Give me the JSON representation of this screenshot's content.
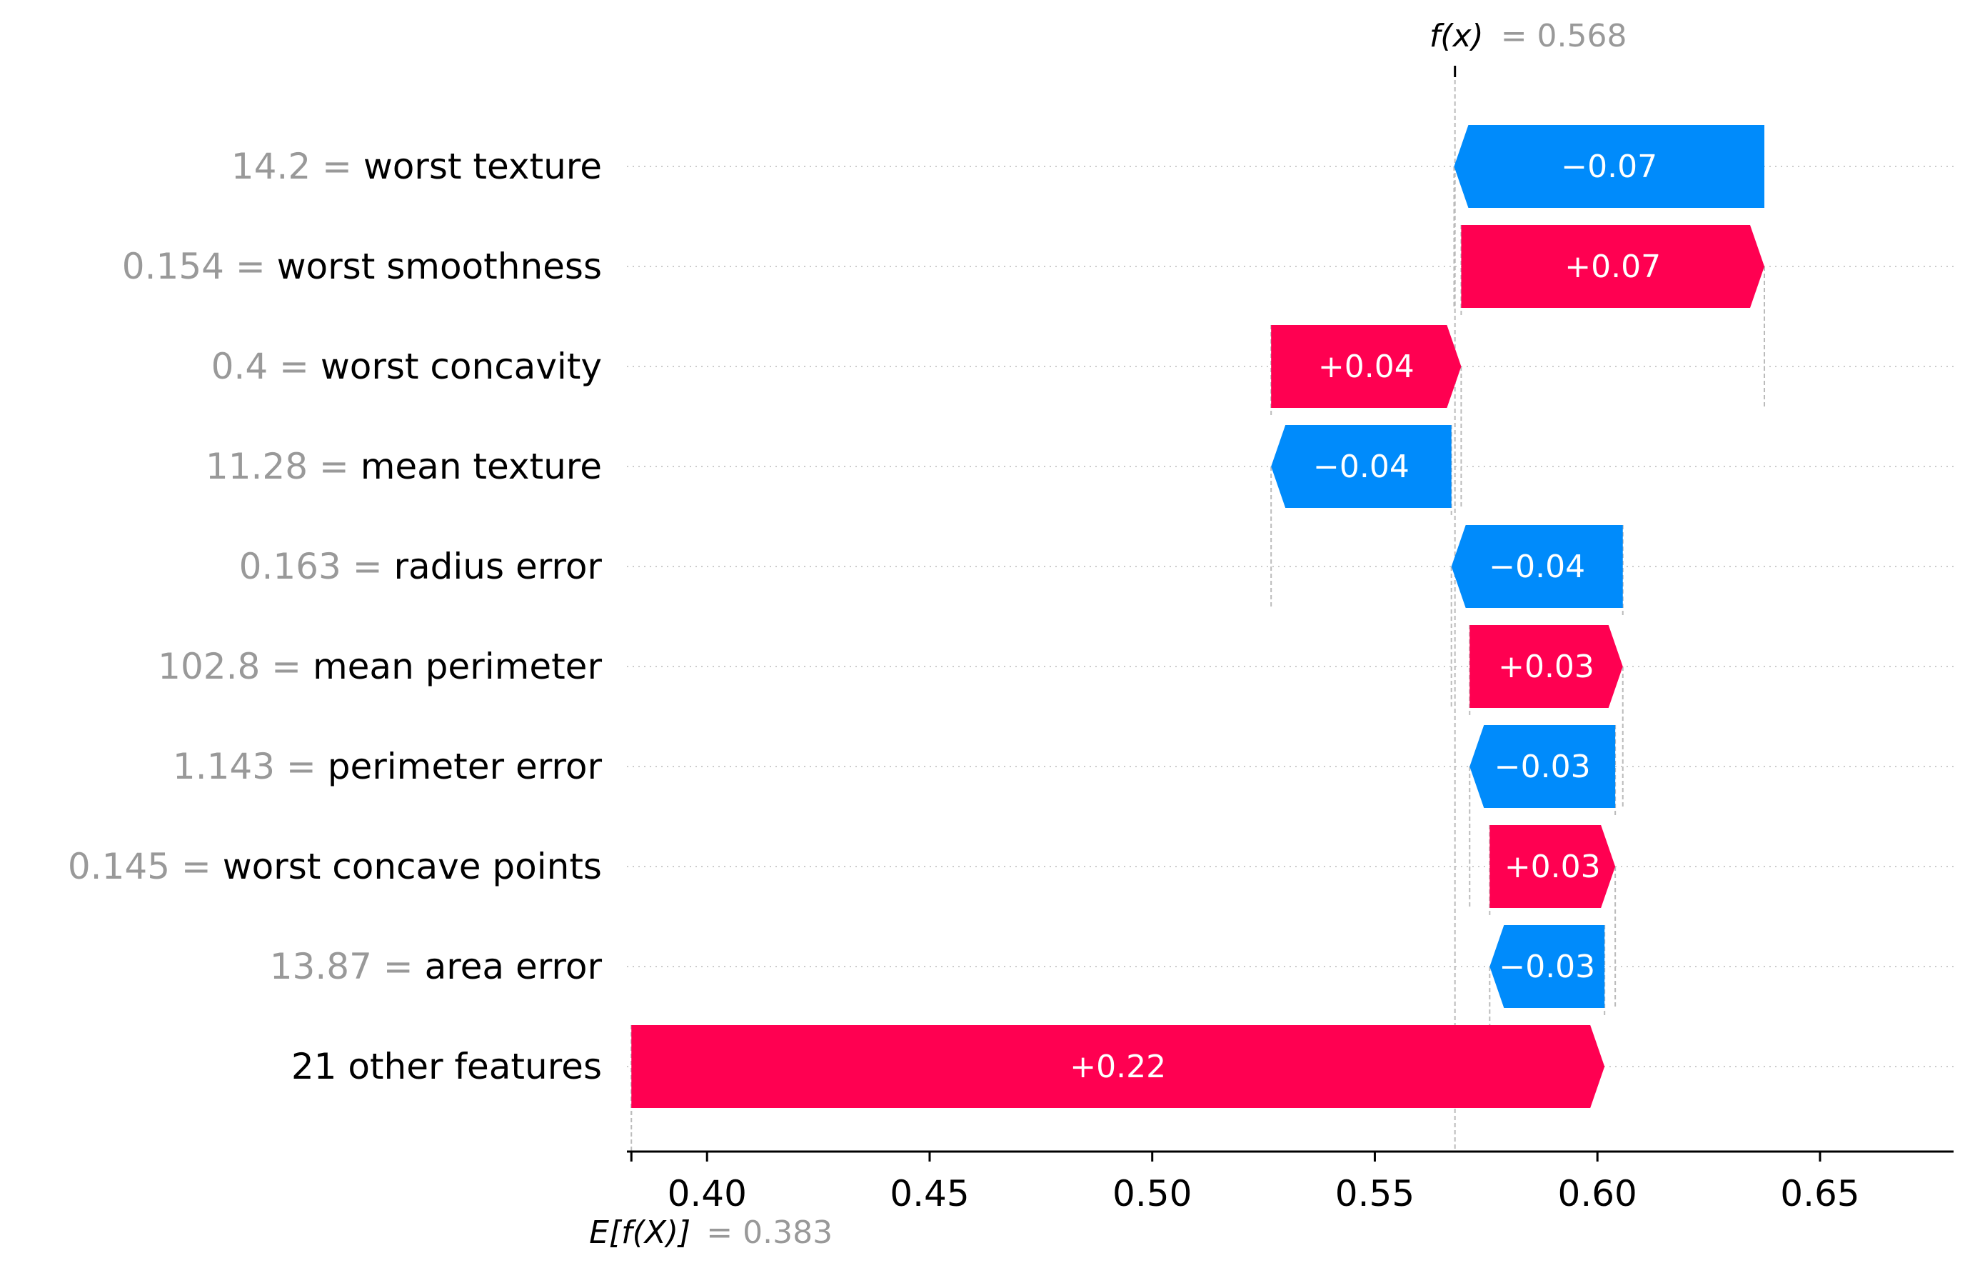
{
  "chart_data": {
    "type": "waterfall",
    "fx_label": "f(x)",
    "fx_value": "0.568",
    "ex_label": "E[f(X)]",
    "ex_value": "0.383",
    "base_value": 0.383,
    "final_value": 0.568,
    "xlim": [
      0.382,
      0.68
    ],
    "xticks": [
      {
        "value": 0.4,
        "label": "0.40"
      },
      {
        "value": 0.45,
        "label": "0.45"
      },
      {
        "value": 0.5,
        "label": "0.50"
      },
      {
        "value": 0.55,
        "label": "0.55"
      },
      {
        "value": 0.6,
        "label": "0.60"
      },
      {
        "value": 0.65,
        "label": "0.65"
      }
    ],
    "features": [
      {
        "value_text": "14.2",
        "name": "worst texture",
        "start": 0.6375,
        "end": 0.5678,
        "label": "−0.07"
      },
      {
        "value_text": "0.154",
        "name": "worst smoothness",
        "start": 0.5694,
        "end": 0.6375,
        "label": "+0.07"
      },
      {
        "value_text": "0.4",
        "name": "worst concavity",
        "start": 0.5267,
        "end": 0.5694,
        "label": "+0.04"
      },
      {
        "value_text": "11.28",
        "name": "mean texture",
        "start": 0.5672,
        "end": 0.5267,
        "label": "−0.04"
      },
      {
        "value_text": "0.163",
        "name": "radius error",
        "start": 0.6057,
        "end": 0.5672,
        "label": "−0.04"
      },
      {
        "value_text": "102.8",
        "name": "mean perimeter",
        "start": 0.5713,
        "end": 0.6057,
        "label": "+0.03"
      },
      {
        "value_text": "1.143",
        "name": "perimeter error",
        "start": 0.604,
        "end": 0.5713,
        "label": "−0.03"
      },
      {
        "value_text": "0.145",
        "name": "worst concave points",
        "start": 0.5758,
        "end": 0.604,
        "label": "+0.03"
      },
      {
        "value_text": "13.87",
        "name": "area error",
        "start": 0.6016,
        "end": 0.5758,
        "label": "−0.03"
      },
      {
        "value_text": "",
        "name": "21 other features",
        "start": 0.383,
        "end": 0.6016,
        "label": "+0.22"
      }
    ],
    "colors": {
      "positive": "#ff0051",
      "negative": "#008bfb",
      "feature_value_text": "#999999",
      "feature_name_text": "#000000",
      "guide_line": "#bbbbbb",
      "row_grid": "#cccccc"
    }
  }
}
